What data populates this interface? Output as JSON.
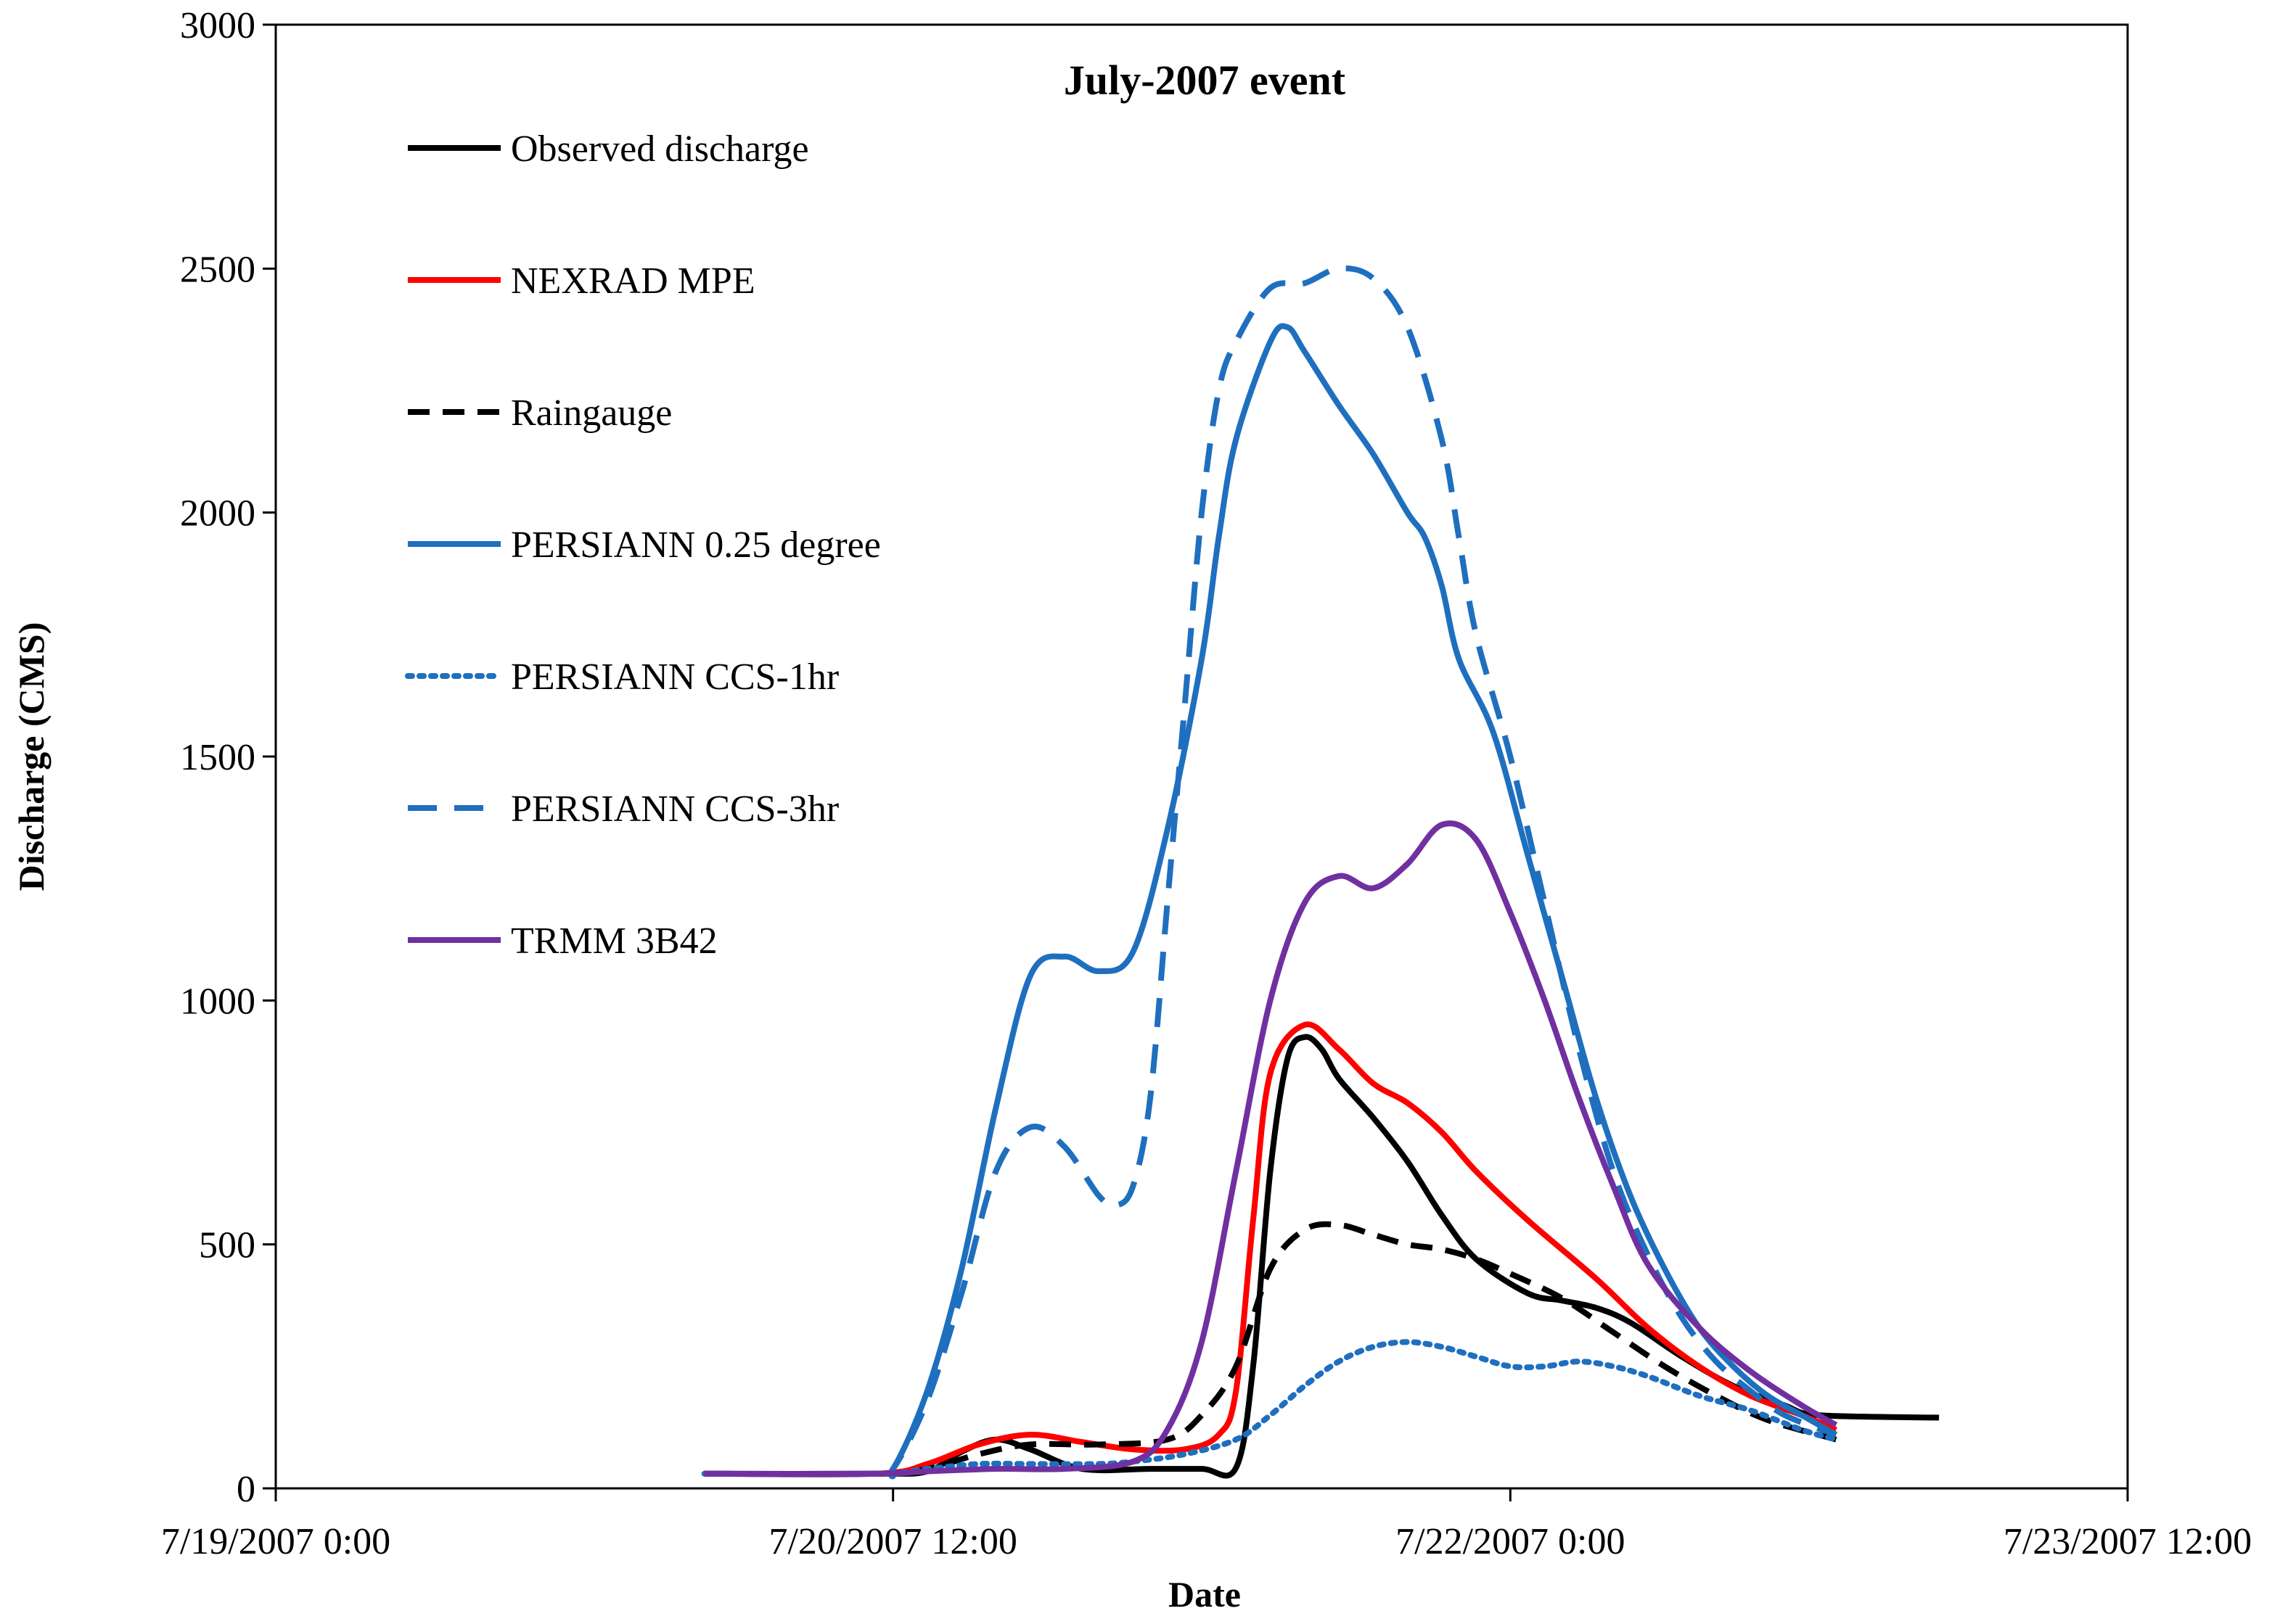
{
  "chart_data": {
    "type": "line",
    "title": "July-2007 event",
    "xlabel": "Date",
    "ylabel": "Discharge (CMS)",
    "x_unit": "hours since 7/19/2007 0:00",
    "xlim": [
      0,
      108
    ],
    "ylim": [
      0,
      3000
    ],
    "x_ticks": [
      {
        "value": 0,
        "label": "7/19/2007 0:00"
      },
      {
        "value": 36,
        "label": "7/20/2007 12:00"
      },
      {
        "value": 72,
        "label": "7/22/2007 0:00"
      },
      {
        "value": 108,
        "label": "7/23/2007 12:00"
      }
    ],
    "y_ticks": [
      {
        "value": 0,
        "label": "0"
      },
      {
        "value": 500,
        "label": "500"
      },
      {
        "value": 1000,
        "label": "1000"
      },
      {
        "value": 1500,
        "label": "1500"
      },
      {
        "value": 2000,
        "label": "2000"
      },
      {
        "value": 2500,
        "label": "2500"
      },
      {
        "value": 3000,
        "label": "3000"
      }
    ],
    "grid": false,
    "legend_position": "top-left",
    "series": [
      {
        "name": "Observed discharge",
        "color": "#000000",
        "style": "solid",
        "points": [
          [
            25,
            30
          ],
          [
            35,
            30
          ],
          [
            38,
            35
          ],
          [
            40,
            75
          ],
          [
            42,
            100
          ],
          [
            44,
            80
          ],
          [
            47,
            40
          ],
          [
            51,
            40
          ],
          [
            54,
            40
          ],
          [
            56,
            42
          ],
          [
            57,
            250
          ],
          [
            58,
            650
          ],
          [
            59,
            880
          ],
          [
            60,
            925
          ],
          [
            61,
            900
          ],
          [
            62,
            840
          ],
          [
            64,
            760
          ],
          [
            66,
            670
          ],
          [
            68,
            560
          ],
          [
            70,
            470
          ],
          [
            73,
            400
          ],
          [
            75,
            385
          ],
          [
            77,
            370
          ],
          [
            79,
            340
          ],
          [
            82,
            270
          ],
          [
            85,
            210
          ],
          [
            88,
            170
          ],
          [
            90,
            150
          ],
          [
            97,
            145
          ]
        ]
      },
      {
        "name": "NEXRAD MPE",
        "color": "#ff0000",
        "style": "solid",
        "points": [
          [
            25,
            30
          ],
          [
            35,
            30
          ],
          [
            38,
            50
          ],
          [
            41,
            90
          ],
          [
            44,
            110
          ],
          [
            47,
            95
          ],
          [
            50,
            80
          ],
          [
            53,
            80
          ],
          [
            55,
            110
          ],
          [
            56,
            200
          ],
          [
            57,
            550
          ],
          [
            58,
            850
          ],
          [
            60,
            950
          ],
          [
            62,
            900
          ],
          [
            64,
            830
          ],
          [
            66,
            790
          ],
          [
            68,
            730
          ],
          [
            70,
            650
          ],
          [
            73,
            550
          ],
          [
            77,
            430
          ],
          [
            80,
            330
          ],
          [
            83,
            250
          ],
          [
            86,
            190
          ],
          [
            89,
            150
          ],
          [
            91,
            120
          ]
        ]
      },
      {
        "name": "Raingauge",
        "color": "#000000",
        "style": "dashed",
        "points": [
          [
            25,
            30
          ],
          [
            35,
            30
          ],
          [
            38,
            40
          ],
          [
            41,
            70
          ],
          [
            44,
            90
          ],
          [
            48,
            90
          ],
          [
            52,
            100
          ],
          [
            54,
            150
          ],
          [
            56,
            250
          ],
          [
            58,
            450
          ],
          [
            60,
            530
          ],
          [
            62,
            540
          ],
          [
            64,
            520
          ],
          [
            66,
            500
          ],
          [
            68,
            490
          ],
          [
            70,
            470
          ],
          [
            72,
            440
          ],
          [
            75,
            390
          ],
          [
            78,
            320
          ],
          [
            81,
            250
          ],
          [
            84,
            190
          ],
          [
            87,
            140
          ],
          [
            91,
            100
          ]
        ]
      },
      {
        "name": "PERSIANN 0.25 degree",
        "color": "#1f6fbf",
        "style": "solid",
        "points": [
          [
            25,
            30
          ],
          [
            35,
            30
          ],
          [
            36,
            40
          ],
          [
            38,
            200
          ],
          [
            40,
            450
          ],
          [
            42,
            780
          ],
          [
            44,
            1050
          ],
          [
            46,
            1090
          ],
          [
            48,
            1060
          ],
          [
            50,
            1100
          ],
          [
            52,
            1350
          ],
          [
            54,
            1700
          ],
          [
            55,
            1950
          ],
          [
            56,
            2150
          ],
          [
            58,
            2350
          ],
          [
            59,
            2380
          ],
          [
            60,
            2330
          ],
          [
            62,
            2220
          ],
          [
            64,
            2120
          ],
          [
            66,
            2000
          ],
          [
            67,
            1950
          ],
          [
            68,
            1850
          ],
          [
            69,
            1700
          ],
          [
            71,
            1550
          ],
          [
            73,
            1300
          ],
          [
            75,
            1050
          ],
          [
            77,
            800
          ],
          [
            79,
            600
          ],
          [
            81,
            450
          ],
          [
            83,
            330
          ],
          [
            85,
            250
          ],
          [
            87,
            190
          ],
          [
            89,
            150
          ],
          [
            91,
            110
          ]
        ]
      },
      {
        "name": "PERSIANN CCS-1hr",
        "color": "#1f6fbf",
        "style": "dotted",
        "points": [
          [
            25,
            30
          ],
          [
            35,
            30
          ],
          [
            38,
            40
          ],
          [
            41,
            50
          ],
          [
            44,
            50
          ],
          [
            48,
            50
          ],
          [
            50,
            55
          ],
          [
            53,
            70
          ],
          [
            56,
            100
          ],
          [
            58,
            150
          ],
          [
            60,
            210
          ],
          [
            62,
            260
          ],
          [
            64,
            290
          ],
          [
            66,
            300
          ],
          [
            68,
            290
          ],
          [
            70,
            270
          ],
          [
            72,
            250
          ],
          [
            74,
            250
          ],
          [
            76,
            260
          ],
          [
            78,
            250
          ],
          [
            80,
            230
          ],
          [
            83,
            190
          ],
          [
            86,
            160
          ],
          [
            89,
            120
          ],
          [
            91,
            100
          ]
        ]
      },
      {
        "name": "PERSIANN CCS-3hr",
        "color": "#1f6fbf",
        "style": "longdash",
        "points": [
          [
            25,
            30
          ],
          [
            35,
            30
          ],
          [
            36,
            40
          ],
          [
            38,
            180
          ],
          [
            40,
            400
          ],
          [
            42,
            650
          ],
          [
            44,
            740
          ],
          [
            46,
            700
          ],
          [
            48,
            600
          ],
          [
            49,
            580
          ],
          [
            50,
            620
          ],
          [
            51,
            800
          ],
          [
            52,
            1200
          ],
          [
            53,
            1600
          ],
          [
            54,
            2000
          ],
          [
            55,
            2250
          ],
          [
            56,
            2350
          ],
          [
            58,
            2460
          ],
          [
            60,
            2470
          ],
          [
            62,
            2500
          ],
          [
            64,
            2480
          ],
          [
            66,
            2380
          ],
          [
            68,
            2150
          ],
          [
            69,
            1950
          ],
          [
            70,
            1750
          ],
          [
            72,
            1500
          ],
          [
            74,
            1200
          ],
          [
            76,
            900
          ],
          [
            78,
            650
          ],
          [
            80,
            480
          ],
          [
            82,
            350
          ],
          [
            84,
            260
          ],
          [
            86,
            200
          ],
          [
            88,
            150
          ],
          [
            91,
            110
          ]
        ]
      },
      {
        "name": "TRMM 3B42",
        "color": "#7030a0",
        "style": "solid",
        "points": [
          [
            25,
            30
          ],
          [
            35,
            30
          ],
          [
            38,
            35
          ],
          [
            42,
            40
          ],
          [
            46,
            40
          ],
          [
            50,
            55
          ],
          [
            52,
            120
          ],
          [
            54,
            300
          ],
          [
            56,
            650
          ],
          [
            58,
            1000
          ],
          [
            60,
            1200
          ],
          [
            62,
            1255
          ],
          [
            64,
            1230
          ],
          [
            66,
            1280
          ],
          [
            68,
            1360
          ],
          [
            70,
            1330
          ],
          [
            72,
            1180
          ],
          [
            74,
            1000
          ],
          [
            76,
            800
          ],
          [
            78,
            620
          ],
          [
            80,
            460
          ],
          [
            83,
            330
          ],
          [
            86,
            240
          ],
          [
            89,
            170
          ],
          [
            91,
            130
          ]
        ]
      }
    ]
  }
}
